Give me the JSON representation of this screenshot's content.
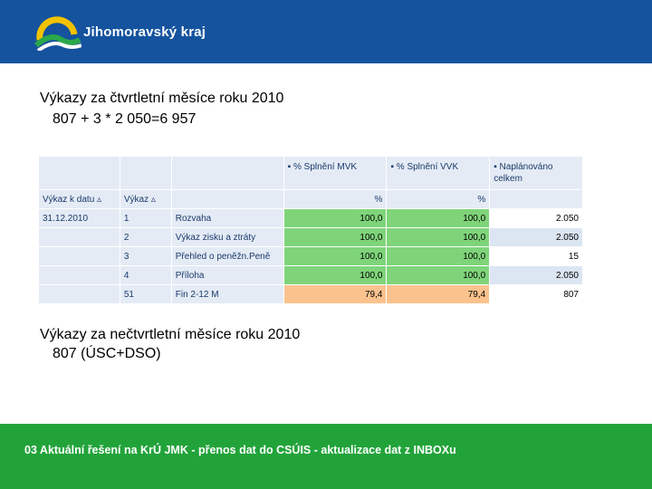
{
  "header": {
    "brand": "Jihomoravský kraj",
    "logo_icon": "jmk-logo-icon",
    "background": "#15539e"
  },
  "content": {
    "line1": "Výkazy za čtvrtletní měsíce roku 2010",
    "line2": "807 + 3 * 2 050=6 957",
    "line3": "Výkazy za nečtvrtletní měsíce roku 2010",
    "line4": "807 (ÚSC+DSO)"
  },
  "table": {
    "measure_headers": [
      "▪ % Splnění MVK",
      "▪ % Splnění VVK",
      "▪ Naplánováno celkem"
    ],
    "dim_headers": [
      "Výkaz k datu",
      "Výkaz"
    ],
    "sort_icon": "sort-triangle-icon",
    "units": [
      "%",
      "%",
      ""
    ],
    "rows": [
      {
        "date": "31.12.2010",
        "id": "1",
        "name": "Rozvaha",
        "mvk": "100,0",
        "vvk": "100,0",
        "plan": "2.050"
      },
      {
        "date": "",
        "id": "2",
        "name": "Výkaz zisku a ztráty",
        "mvk": "100,0",
        "vvk": "100,0",
        "plan": "2.050"
      },
      {
        "date": "",
        "id": "3",
        "name": "Přehled o peněžn.Peně",
        "mvk": "100,0",
        "vvk": "100,0",
        "plan": "15"
      },
      {
        "date": "",
        "id": "4",
        "name": "Příloha",
        "mvk": "100,0",
        "vvk": "100,0",
        "plan": "2.050"
      },
      {
        "date": "",
        "id": "51",
        "name": "Fin 2-12 M",
        "mvk": "79,4",
        "vvk": "79,4",
        "plan": "807"
      }
    ],
    "colors": {
      "green": "#7fd47a",
      "orange": "#fbc28e",
      "header_blue": "#e4ebf5"
    }
  },
  "footer": {
    "text": "03 Aktuální řešení na KrÚ JMK - přenos dat do CSÚIS - aktualizace dat z INBOXu",
    "background": "#22a33a"
  }
}
